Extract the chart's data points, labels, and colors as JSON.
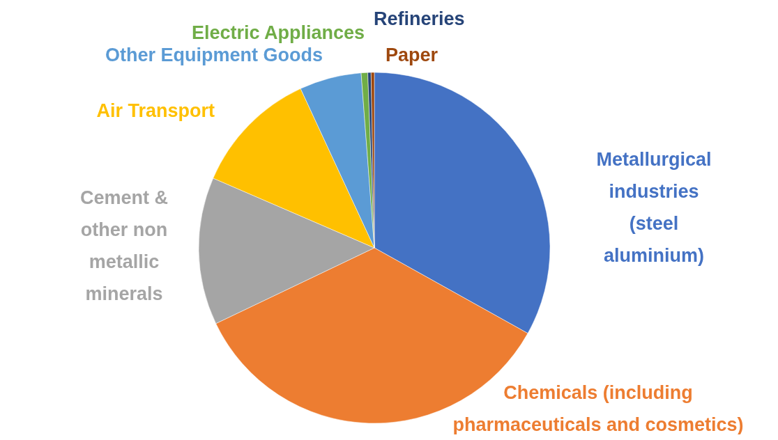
{
  "chart_data": {
    "type": "pie",
    "categories": [
      "Metallurgical industries (steel aluminium)",
      "Chemicals (including pharmaceuticals and cosmetics)",
      "Cement & other non metallic minerals",
      "Air Transport",
      "Other Equipment Goods",
      "Electric Appliances",
      "Refineries",
      "Paper"
    ],
    "values": [
      33.1,
      34.8,
      13.6,
      11.6,
      5.7,
      0.6,
      0.3,
      0.3
    ],
    "colors": [
      "#4472c4",
      "#ed7d31",
      "#a5a5a5",
      "#ffc000",
      "#5b9bd5",
      "#70ad47",
      "#264478",
      "#9e480e"
    ]
  }
}
